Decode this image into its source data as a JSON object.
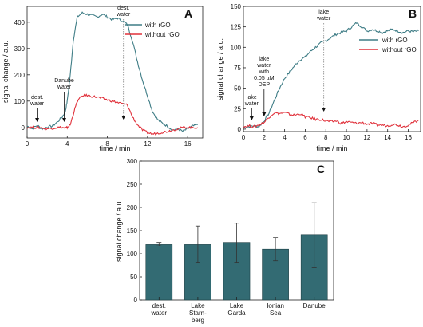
{
  "chart_data": [
    {
      "panel": "A",
      "type": "line",
      "xlabel": "time / min",
      "ylabel": "signal change / a.u.",
      "xlim": [
        0,
        17.5
      ],
      "ylim": [
        -40,
        460
      ],
      "xticks": [
        0,
        4,
        8,
        12,
        16
      ],
      "yticks": [
        0,
        100,
        200,
        300,
        400
      ],
      "legend_position": "top-right",
      "series": [
        {
          "name": "with rGO",
          "color": "#3f7d86",
          "x": [
            0,
            0.5,
            1,
            1.5,
            2,
            2.5,
            3,
            3.5,
            3.8,
            4,
            4.3,
            4.6,
            5,
            5.5,
            6,
            6.5,
            7,
            7.5,
            8,
            8.5,
            9,
            9.5,
            10,
            10.5,
            11,
            11.5,
            12,
            12.5,
            13,
            13.5,
            14,
            14.5,
            15,
            15.5,
            16,
            16.5,
            17
          ],
          "y": [
            5,
            -5,
            8,
            -6,
            2,
            5,
            20,
            40,
            60,
            100,
            200,
            330,
            420,
            435,
            430,
            425,
            420,
            430,
            420,
            410,
            415,
            405,
            390,
            330,
            250,
            180,
            120,
            60,
            30,
            15,
            5,
            -10,
            -5,
            -15,
            -5,
            5,
            10
          ]
        },
        {
          "name": "without rGO",
          "color": "#e0303a",
          "x": [
            0,
            0.5,
            1,
            1.5,
            2,
            2.5,
            3,
            3.5,
            3.8,
            4,
            4.3,
            4.6,
            5,
            5.5,
            6,
            6.5,
            7,
            7.5,
            8,
            8.5,
            9,
            9.5,
            10,
            10.5,
            11,
            11.5,
            12,
            12.5,
            13,
            13.5,
            14,
            14.5,
            15,
            15.5,
            16,
            16.5,
            17
          ],
          "y": [
            0,
            0,
            0,
            -2,
            -5,
            -3,
            0,
            0,
            -3,
            0,
            10,
            50,
            100,
            120,
            122,
            118,
            115,
            110,
            105,
            100,
            95,
            90,
            85,
            40,
            10,
            -10,
            -20,
            -25,
            -22,
            -18,
            -15,
            -10,
            -5,
            0,
            0,
            0,
            0
          ]
        }
      ],
      "annotations": [
        {
          "lines": [
            "dest.",
            "water"
          ],
          "x": 1.0
        },
        {
          "lines": [
            "Danube",
            "water"
          ],
          "x": 3.7
        },
        {
          "lines": [
            "dest.",
            "water"
          ],
          "x": 9.6
        }
      ]
    },
    {
      "panel": "B",
      "type": "line",
      "xlabel": "time / min",
      "ylabel": "signal change / a.u.",
      "xlim": [
        0,
        17.2
      ],
      "ylim": [
        -3,
        150
      ],
      "xticks": [
        0,
        2,
        4,
        6,
        8,
        10,
        12,
        14,
        16
      ],
      "yticks": [
        0,
        25,
        50,
        75,
        100,
        125,
        150
      ],
      "legend_position": "right",
      "series": [
        {
          "name": "with rGO",
          "color": "#3f7d86",
          "x": [
            0,
            0.5,
            1,
            1.5,
            2,
            2.5,
            3,
            3.5,
            4,
            4.5,
            5,
            5.5,
            6,
            6.5,
            7,
            7.5,
            8,
            8.5,
            9,
            9.5,
            10,
            10.5,
            11,
            11.5,
            12,
            12.5,
            13,
            13.5,
            14,
            14.5,
            15,
            15.5,
            16,
            16.5,
            17
          ],
          "y": [
            2,
            3,
            4,
            3,
            10,
            20,
            35,
            50,
            62,
            70,
            78,
            85,
            88,
            95,
            100,
            105,
            108,
            112,
            116,
            118,
            120,
            125,
            130,
            125,
            120,
            122,
            120,
            118,
            120,
            122,
            120,
            118,
            120,
            119,
            120
          ]
        },
        {
          "name": "without rGO",
          "color": "#e0303a",
          "x": [
            0,
            0.5,
            1,
            1.5,
            2,
            2.5,
            3,
            3.5,
            4,
            4.5,
            5,
            5.5,
            6,
            6.5,
            7,
            7.5,
            8,
            8.5,
            9,
            9.5,
            10,
            10.5,
            11,
            11.5,
            12,
            12.5,
            13,
            13.5,
            14,
            14.5,
            15,
            15.5,
            16,
            16.5,
            17
          ],
          "y": [
            3,
            4,
            3,
            5,
            8,
            15,
            20,
            19,
            20,
            18,
            17,
            19,
            15,
            14,
            12,
            12,
            10,
            9,
            10,
            7,
            9,
            8,
            7,
            8,
            6,
            7,
            5,
            5,
            4,
            6,
            5,
            3,
            5,
            8,
            11
          ]
        }
      ],
      "annotations": [
        {
          "lines": [
            "lake",
            "water"
          ],
          "x": 0.8
        },
        {
          "lines": [
            "lake",
            "water",
            "with",
            "0.05 µM",
            "DEP"
          ],
          "x": 2.0
        },
        {
          "lines": [
            "lake",
            "water"
          ],
          "x": 7.8
        }
      ]
    },
    {
      "panel": "C",
      "type": "bar",
      "ylabel": "signal change / a.u.",
      "ylim": [
        0,
        300
      ],
      "yticks": [
        0,
        50,
        100,
        150,
        200,
        250,
        300
      ],
      "bar_color": "#336b73",
      "categories": [
        [
          "dest.",
          "water"
        ],
        [
          "Lake",
          "Starn-",
          "berg"
        ],
        [
          "Lake",
          "Garda"
        ],
        [
          "Ionian",
          "Sea"
        ],
        [
          "Danube"
        ]
      ],
      "values": [
        120,
        120,
        123,
        110,
        140
      ],
      "errors": [
        3,
        40,
        43,
        25,
        70
      ]
    }
  ]
}
